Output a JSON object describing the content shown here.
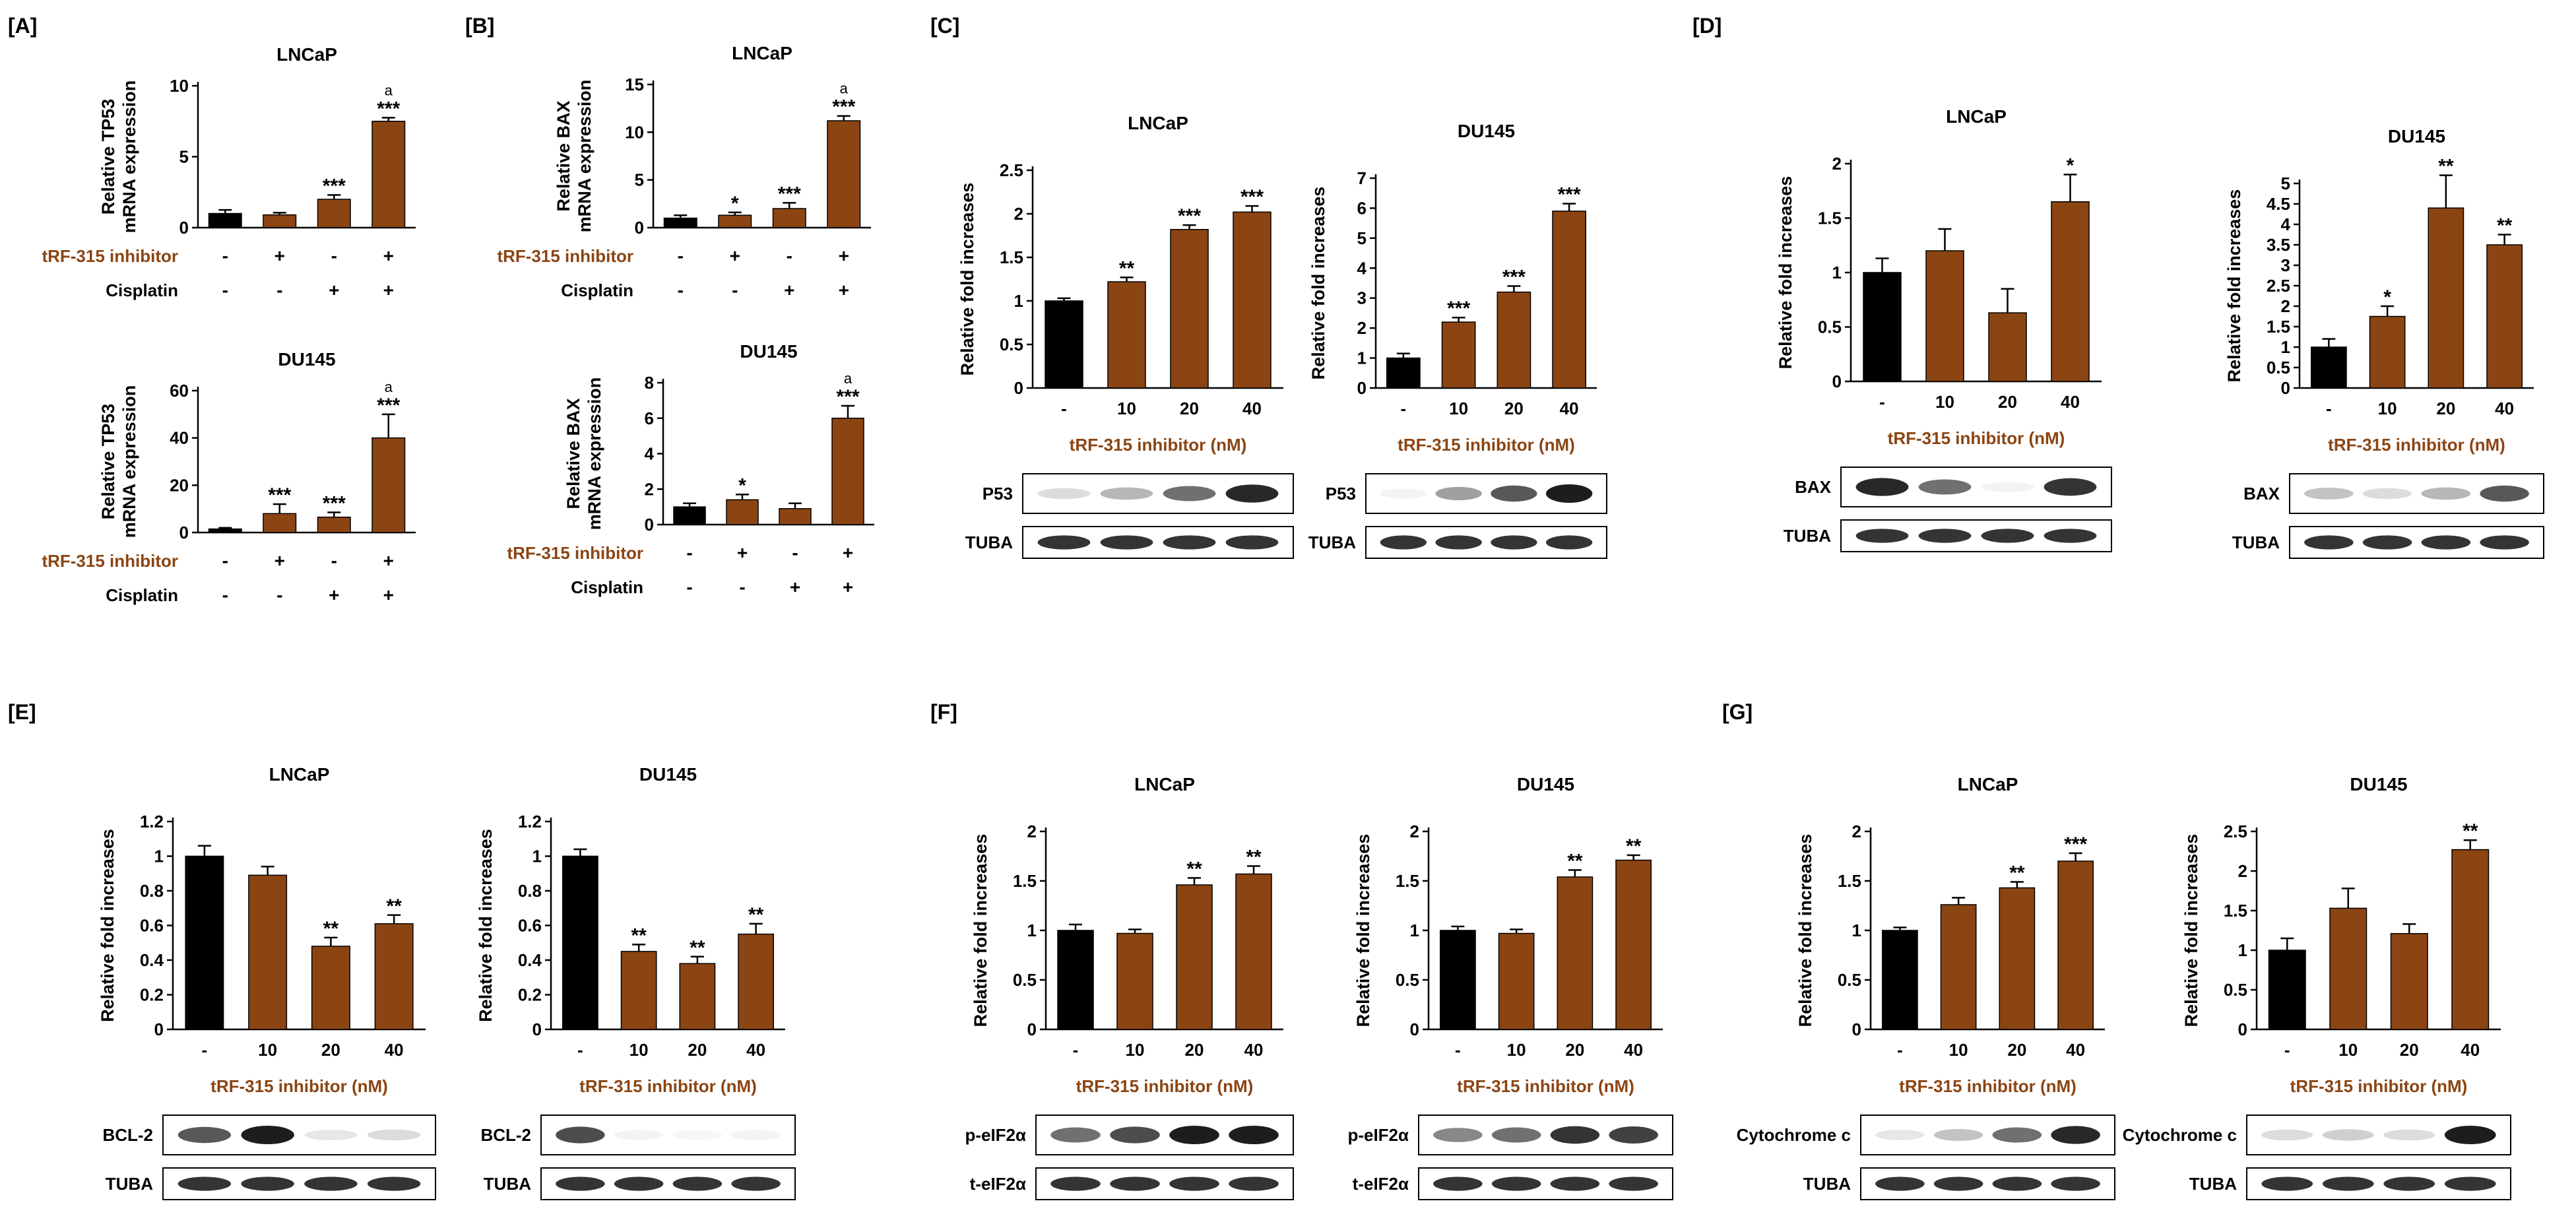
{
  "colors": {
    "control": "#000000",
    "treated": "#8B4513",
    "label": "#8B4513",
    "text": "#000000"
  },
  "chart_data": [
    {
      "id": "A1",
      "panel_label": "[A]",
      "type": "bar",
      "title": "LNCaP",
      "ylabel_lines": [
        "Relative TP53",
        "mRNA expression"
      ],
      "ylim": [
        0,
        10
      ],
      "yticks": [
        0,
        5,
        10
      ],
      "values": [
        1.0,
        0.9,
        2.0,
        7.5
      ],
      "errors": [
        0.25,
        0.15,
        0.3,
        0.25
      ],
      "annotations": [
        "",
        "",
        "***",
        "a ***"
      ],
      "treatment_rows": [
        {
          "label": "tRF-315 inhibitor",
          "signs": [
            "-",
            "+",
            "-",
            "+"
          ],
          "colored": true
        },
        {
          "label": "Cisplatin",
          "signs": [
            "-",
            "-",
            "+",
            "+"
          ],
          "colored": false
        }
      ]
    },
    {
      "id": "A2",
      "type": "bar",
      "title": "DU145",
      "ylabel_lines": [
        "Relative TP53",
        "mRNA expression"
      ],
      "ylim": [
        0,
        60
      ],
      "yticks": [
        0,
        20,
        40,
        60
      ],
      "values": [
        1.5,
        8.0,
        6.5,
        40.0
      ],
      "errors": [
        0.5,
        4.0,
        2.0,
        10.0
      ],
      "annotations": [
        "",
        "***",
        "***",
        "a ***"
      ],
      "treatment_rows": [
        {
          "label": "tRF-315 inhibitor",
          "signs": [
            "-",
            "+",
            "-",
            "+"
          ],
          "colored": true
        },
        {
          "label": "Cisplatin",
          "signs": [
            "-",
            "-",
            "+",
            "+"
          ],
          "colored": false
        }
      ]
    },
    {
      "id": "B1",
      "panel_label": "[B]",
      "type": "bar",
      "title": "LNCaP",
      "ylabel_lines": [
        "Relative BAX",
        "mRNA expression"
      ],
      "ylim": [
        0,
        15
      ],
      "yticks": [
        0,
        5,
        10,
        15
      ],
      "values": [
        1.0,
        1.3,
        2.0,
        11.2
      ],
      "errors": [
        0.3,
        0.3,
        0.6,
        0.5
      ],
      "annotations": [
        "",
        "*",
        "***",
        "a ***"
      ],
      "treatment_rows": [
        {
          "label": "tRF-315 inhibitor",
          "signs": [
            "-",
            "+",
            "-",
            "+"
          ],
          "colored": true
        },
        {
          "label": "Cisplatin",
          "signs": [
            "-",
            "-",
            "+",
            "+"
          ],
          "colored": false
        }
      ]
    },
    {
      "id": "B2",
      "type": "bar",
      "title": "DU145",
      "ylabel_lines": [
        "Relative BAX",
        "mRNA expression"
      ],
      "ylim": [
        0,
        8
      ],
      "yticks": [
        0,
        2,
        4,
        6,
        8
      ],
      "values": [
        1.0,
        1.4,
        0.9,
        6.0
      ],
      "errors": [
        0.2,
        0.3,
        0.3,
        0.7
      ],
      "annotations": [
        "",
        "*",
        "",
        "a ***"
      ],
      "treatment_rows": [
        {
          "label": "tRF-315 inhibitor",
          "signs": [
            "-",
            "+",
            "-",
            "+"
          ],
          "colored": true
        },
        {
          "label": "Cisplatin",
          "signs": [
            "-",
            "-",
            "+",
            "+"
          ],
          "colored": false
        }
      ]
    },
    {
      "id": "C1",
      "panel_label": "[C]",
      "type": "bar",
      "title": "LNCaP",
      "ylabel": "Relative fold increases",
      "ylim": [
        0,
        2.5
      ],
      "yticks": [
        0,
        0.5,
        1,
        1.5,
        2,
        2.5
      ],
      "categories": [
        "-",
        "10",
        "20",
        "40"
      ],
      "xlabel": "tRF-315 inhibitor (nM)",
      "values": [
        1.0,
        1.22,
        1.82,
        2.02
      ],
      "errors": [
        0.03,
        0.05,
        0.05,
        0.07
      ],
      "annotations": [
        "",
        "**",
        "***",
        "***"
      ],
      "blots": [
        {
          "label": "P53",
          "pattern": "p53_lncap"
        },
        {
          "label": "TUBA",
          "pattern": "tuba"
        }
      ]
    },
    {
      "id": "C2",
      "type": "bar",
      "title": "DU145",
      "ylabel": "Relative fold increases",
      "ylim": [
        0,
        7
      ],
      "yticks": [
        0,
        1,
        2,
        3,
        4,
        5,
        6,
        7
      ],
      "categories": [
        "-",
        "10",
        "20",
        "40"
      ],
      "xlabel": "tRF-315 inhibitor (nM)",
      "values": [
        1.0,
        2.2,
        3.2,
        5.9
      ],
      "errors": [
        0.15,
        0.15,
        0.2,
        0.25
      ],
      "annotations": [
        "",
        "***",
        "***",
        "***"
      ],
      "blots": [
        {
          "label": "P53",
          "pattern": "p53_du145"
        },
        {
          "label": "TUBA",
          "pattern": "tuba"
        }
      ]
    },
    {
      "id": "D1",
      "panel_label": "[D]",
      "type": "bar",
      "title": "LNCaP",
      "ylabel": "Relative fold increases",
      "ylim": [
        0,
        2
      ],
      "yticks": [
        0,
        0.5,
        1,
        1.5,
        2
      ],
      "categories": [
        "-",
        "10",
        "20",
        "40"
      ],
      "xlabel": "tRF-315 inhibitor (nM)",
      "values": [
        1.0,
        1.2,
        0.63,
        1.65
      ],
      "errors": [
        0.13,
        0.2,
        0.22,
        0.25
      ],
      "annotations": [
        "",
        "",
        "",
        "*"
      ],
      "blots": [
        {
          "label": "BAX",
          "pattern": "bax_lncap"
        },
        {
          "label": "TUBA",
          "pattern": "tuba"
        }
      ]
    },
    {
      "id": "D2",
      "type": "bar",
      "title": "DU145",
      "ylabel": "Relative fold increases",
      "ylim": [
        0,
        5
      ],
      "yticks": [
        0,
        0.5,
        1,
        1.5,
        2,
        2.5,
        3,
        3.5,
        4,
        4.5,
        5
      ],
      "categories": [
        "-",
        "10",
        "20",
        "40"
      ],
      "xlabel": "tRF-315 inhibitor (nM)",
      "values": [
        1.0,
        1.75,
        4.4,
        3.5
      ],
      "errors": [
        0.2,
        0.25,
        0.8,
        0.25
      ],
      "annotations": [
        "",
        "*",
        "**",
        "**"
      ],
      "blots": [
        {
          "label": "BAX",
          "pattern": "bax_du145"
        },
        {
          "label": "TUBA",
          "pattern": "tuba"
        }
      ]
    },
    {
      "id": "E1",
      "panel_label": "[E]",
      "type": "bar",
      "title": "LNCaP",
      "ylabel": "Relative fold increases",
      "ylim": [
        0,
        1.2
      ],
      "yticks": [
        0,
        0.2,
        0.4,
        0.6,
        0.8,
        1,
        1.2
      ],
      "categories": [
        "-",
        "10",
        "20",
        "40"
      ],
      "xlabel": "tRF-315 inhibitor (nM)",
      "values": [
        1.0,
        0.89,
        0.48,
        0.61
      ],
      "errors": [
        0.06,
        0.05,
        0.05,
        0.05
      ],
      "annotations": [
        "",
        "",
        "**",
        "**"
      ],
      "blots": [
        {
          "label": "BCL-2",
          "pattern": "bcl2_lncap"
        },
        {
          "label": "TUBA",
          "pattern": "tuba"
        }
      ]
    },
    {
      "id": "E2",
      "type": "bar",
      "title": "DU145",
      "ylabel": "Relative fold increases",
      "ylim": [
        0,
        1.2
      ],
      "yticks": [
        0,
        0.2,
        0.4,
        0.6,
        0.8,
        1,
        1.2
      ],
      "categories": [
        "-",
        "10",
        "20",
        "40"
      ],
      "xlabel": "tRF-315 inhibitor (nM)",
      "values": [
        1.0,
        0.45,
        0.38,
        0.55
      ],
      "errors": [
        0.04,
        0.04,
        0.04,
        0.06
      ],
      "annotations": [
        "",
        "**",
        "**",
        "**"
      ],
      "blots": [
        {
          "label": "BCL-2",
          "pattern": "bcl2_du145"
        },
        {
          "label": "TUBA",
          "pattern": "tuba"
        }
      ]
    },
    {
      "id": "F1",
      "panel_label": "[F]",
      "type": "bar",
      "title": "LNCaP",
      "ylabel": "Relative fold increases",
      "ylim": [
        0,
        2
      ],
      "yticks": [
        0,
        0.5,
        1,
        1.5,
        2
      ],
      "categories": [
        "-",
        "10",
        "20",
        "40"
      ],
      "xlabel": "tRF-315 inhibitor (nM)",
      "values": [
        1.0,
        0.97,
        1.46,
        1.57
      ],
      "errors": [
        0.06,
        0.04,
        0.07,
        0.08
      ],
      "annotations": [
        "",
        "",
        "**",
        "**"
      ],
      "blots": [
        {
          "label": "p-eIF2α",
          "pattern": "peif_lncap"
        },
        {
          "label": "t-eIF2α",
          "pattern": "tuba"
        }
      ]
    },
    {
      "id": "F2",
      "type": "bar",
      "title": "DU145",
      "ylabel": "Relative fold increases",
      "ylim": [
        0,
        2
      ],
      "yticks": [
        0,
        0.5,
        1,
        1.5,
        2
      ],
      "categories": [
        "-",
        "10",
        "20",
        "40"
      ],
      "xlabel": "tRF-315 inhibitor (nM)",
      "values": [
        1.0,
        0.97,
        1.54,
        1.71
      ],
      "errors": [
        0.04,
        0.04,
        0.07,
        0.05
      ],
      "annotations": [
        "",
        "",
        "**",
        "**"
      ],
      "blots": [
        {
          "label": "p-eIF2α",
          "pattern": "peif_du145"
        },
        {
          "label": "t-eIF2α",
          "pattern": "tuba"
        }
      ]
    },
    {
      "id": "G1",
      "panel_label": "[G]",
      "type": "bar",
      "title": "LNCaP",
      "ylabel": "Relative fold increases",
      "ylim": [
        0,
        2
      ],
      "yticks": [
        0,
        0.5,
        1,
        1.5,
        2
      ],
      "categories": [
        "-",
        "10",
        "20",
        "40"
      ],
      "xlabel": "tRF-315 inhibitor (nM)",
      "values": [
        1.0,
        1.26,
        1.43,
        1.7
      ],
      "errors": [
        0.03,
        0.07,
        0.06,
        0.08
      ],
      "annotations": [
        "",
        "",
        "**",
        "***"
      ],
      "blots": [
        {
          "label": "Cytochrome c",
          "pattern": "cytc_lncap"
        },
        {
          "label": "TUBA",
          "pattern": "tuba"
        }
      ]
    },
    {
      "id": "G2",
      "type": "bar",
      "title": "DU145",
      "ylabel": "Relative fold increases",
      "ylim": [
        0,
        2.5
      ],
      "yticks": [
        0,
        0.5,
        1,
        1.5,
        2,
        2.5
      ],
      "categories": [
        "-",
        "10",
        "20",
        "40"
      ],
      "xlabel": "tRF-315 inhibitor (nM)",
      "values": [
        1.0,
        1.53,
        1.21,
        2.27
      ],
      "errors": [
        0.15,
        0.25,
        0.12,
        0.12
      ],
      "annotations": [
        "",
        "",
        "",
        "**"
      ],
      "blots": [
        {
          "label": "Cytochrome c",
          "pattern": "cytc_du145"
        },
        {
          "label": "TUBA",
          "pattern": "tuba"
        }
      ]
    }
  ]
}
